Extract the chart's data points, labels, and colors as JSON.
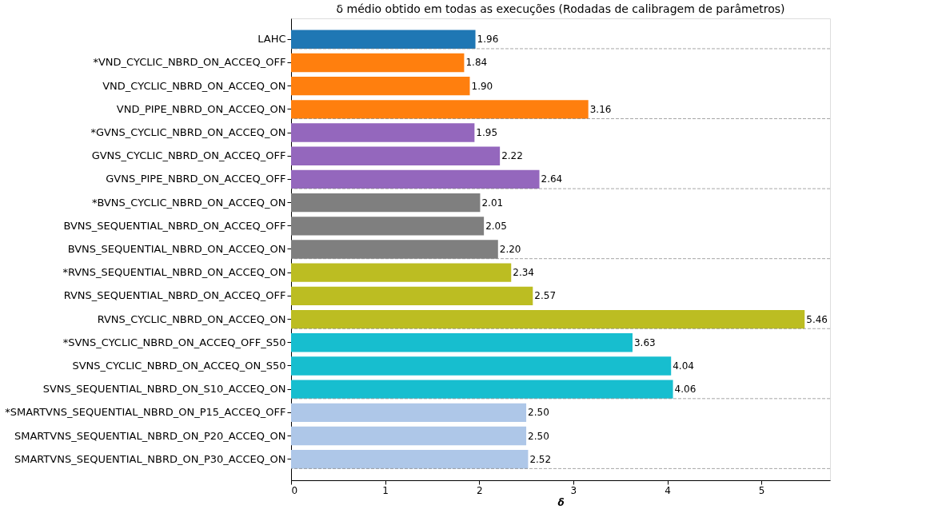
{
  "chart_data": {
    "type": "bar",
    "orientation": "horizontal",
    "title": "δ médio obtido em todas as execuções (Rodadas de calibragem de parâmetros)",
    "xlabel": "δ",
    "categories": [
      "LAHC",
      "*VND_CYCLIC_NBRD_ON_ACCEQ_OFF",
      "VND_CYCLIC_NBRD_ON_ACCEQ_ON",
      "VND_PIPE_NBRD_ON_ACCEQ_ON",
      "*GVNS_CYCLIC_NBRD_ON_ACCEQ_ON",
      "GVNS_CYCLIC_NBRD_ON_ACCEQ_OFF",
      "GVNS_PIPE_NBRD_ON_ACCEQ_OFF",
      "*BVNS_CYCLIC_NBRD_ON_ACCEQ_ON",
      "BVNS_SEQUENTIAL_NBRD_ON_ACCEQ_OFF",
      "BVNS_SEQUENTIAL_NBRD_ON_ACCEQ_ON",
      "*RVNS_SEQUENTIAL_NBRD_ON_ACCEQ_ON",
      "RVNS_SEQUENTIAL_NBRD_ON_ACCEQ_OFF",
      "RVNS_CYCLIC_NBRD_ON_ACCEQ_ON",
      "*SVNS_CYCLIC_NBRD_ON_ACCEQ_OFF_S50",
      "SVNS_CYCLIC_NBRD_ON_ACCEQ_ON_S50",
      "SVNS_SEQUENTIAL_NBRD_ON_S10_ACCEQ_ON",
      "*SMARTVNS_SEQUENTIAL_NBRD_ON_P15_ACCEQ_OFF",
      "SMARTVNS_SEQUENTIAL_NBRD_ON_P20_ACCEQ_ON",
      "SMARTVNS_SEQUENTIAL_NBRD_ON_P30_ACCEQ_ON"
    ],
    "values": [
      1.96,
      1.84,
      1.9,
      3.16,
      1.95,
      2.22,
      2.64,
      2.01,
      2.05,
      2.2,
      2.34,
      2.57,
      5.46,
      3.63,
      4.04,
      4.06,
      2.5,
      2.5,
      2.52
    ],
    "colors": [
      "#1f77b4",
      "#ff7f0e",
      "#ff7f0e",
      "#ff7f0e",
      "#9467bd",
      "#9467bd",
      "#9467bd",
      "#7f7f7f",
      "#7f7f7f",
      "#7f7f7f",
      "#bcbd22",
      "#bcbd22",
      "#bcbd22",
      "#17becf",
      "#17becf",
      "#17becf",
      "#aec7e8",
      "#aec7e8",
      "#aec7e8"
    ],
    "value_labels": [
      "1.96",
      "1.84",
      "1.90",
      "3.16",
      "1.95",
      "2.22",
      "2.64",
      "2.01",
      "2.05",
      "2.20",
      "2.34",
      "2.57",
      "5.46",
      "3.63",
      "4.04",
      "4.06",
      "2.50",
      "2.50",
      "2.52"
    ],
    "xlim": [
      0,
      5.73
    ],
    "xticks": [
      0,
      1,
      2,
      3,
      4,
      5
    ],
    "grid": false,
    "ref_lines": [
      {
        "axis": "y",
        "value": "LAHC",
        "color": "#808080",
        "line_style": "dashed"
      },
      {
        "axis": "y",
        "value": "VND_PIPE_NBRD_ON_ACCEQ_ON",
        "color": "#808080",
        "line_style": "dashed"
      },
      {
        "axis": "y",
        "value": "GVNS_PIPE_NBRD_ON_ACCEQ_OFF",
        "color": "#808080",
        "line_style": "dashed"
      },
      {
        "axis": "y",
        "value": "BVNS_SEQUENTIAL_NBRD_ON_ACCEQ_ON",
        "color": "#808080",
        "line_style": "dashed"
      },
      {
        "axis": "y",
        "value": "RVNS_CYCLIC_NBRD_ON_ACCEQ_ON",
        "color": "#808080",
        "line_style": "dashed"
      },
      {
        "axis": "y",
        "value": "SVNS_SEQUENTIAL_NBRD_ON_S10_ACCEQ_ON",
        "color": "#808080",
        "line_style": "dashed"
      },
      {
        "axis": "y",
        "value": "SMARTVNS_SEQUENTIAL_NBRD_ON_P30_ACCEQ_ON",
        "color": "#808080",
        "line_style": "dashed"
      }
    ]
  }
}
